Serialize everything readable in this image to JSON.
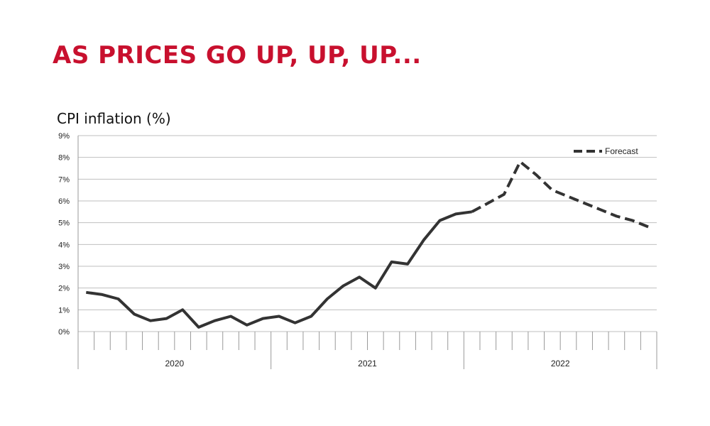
{
  "headline": "AS PRICES GO UP, UP, UP...",
  "colors": {
    "headline": "#c8102e",
    "line": "#333333",
    "grid": "#bfbfbf",
    "axis": "#999999"
  },
  "chart_data": {
    "type": "line",
    "title": "CPI inflation (%)",
    "xlabel": "",
    "ylabel": "",
    "ylim": [
      0,
      9
    ],
    "y_ticks": [
      "0%",
      "1%",
      "2%",
      "3%",
      "4%",
      "5%",
      "6%",
      "7%",
      "8%",
      "9%"
    ],
    "x_groups": [
      {
        "label": "2020",
        "months": 12
      },
      {
        "label": "2021",
        "months": 12
      },
      {
        "label": "2022",
        "months": 12
      }
    ],
    "grid": true,
    "legend": {
      "position": "top-right",
      "entries": [
        "Forecast"
      ]
    },
    "series": [
      {
        "style": "solid",
        "x": [
          "2020-01",
          "2020-02",
          "2020-03",
          "2020-04",
          "2020-05",
          "2020-06",
          "2020-07",
          "2020-08",
          "2020-09",
          "2020-10",
          "2020-11",
          "2020-12",
          "2021-01",
          "2021-02",
          "2021-03",
          "2021-04",
          "2021-05",
          "2021-06",
          "2021-07",
          "2021-08",
          "2021-09",
          "2021-10",
          "2021-11",
          "2021-12",
          "2022-01"
        ],
        "values": [
          1.8,
          1.7,
          1.5,
          0.8,
          0.5,
          0.6,
          1.0,
          0.2,
          0.5,
          0.7,
          0.3,
          0.6,
          0.7,
          0.4,
          0.7,
          1.5,
          2.1,
          2.5,
          2.0,
          3.2,
          3.1,
          4.2,
          5.1,
          5.4,
          5.5
        ]
      },
      {
        "name": "Forecast",
        "style": "dashed",
        "x": [
          "2022-01",
          "2022-02",
          "2022-03",
          "2022-04",
          "2022-05",
          "2022-06",
          "2022-07",
          "2022-08",
          "2022-09",
          "2022-10",
          "2022-11",
          "2022-12"
        ],
        "values": [
          5.5,
          5.9,
          6.3,
          7.8,
          7.2,
          6.5,
          6.2,
          5.9,
          5.6,
          5.3,
          5.1,
          4.8
        ]
      }
    ]
  }
}
